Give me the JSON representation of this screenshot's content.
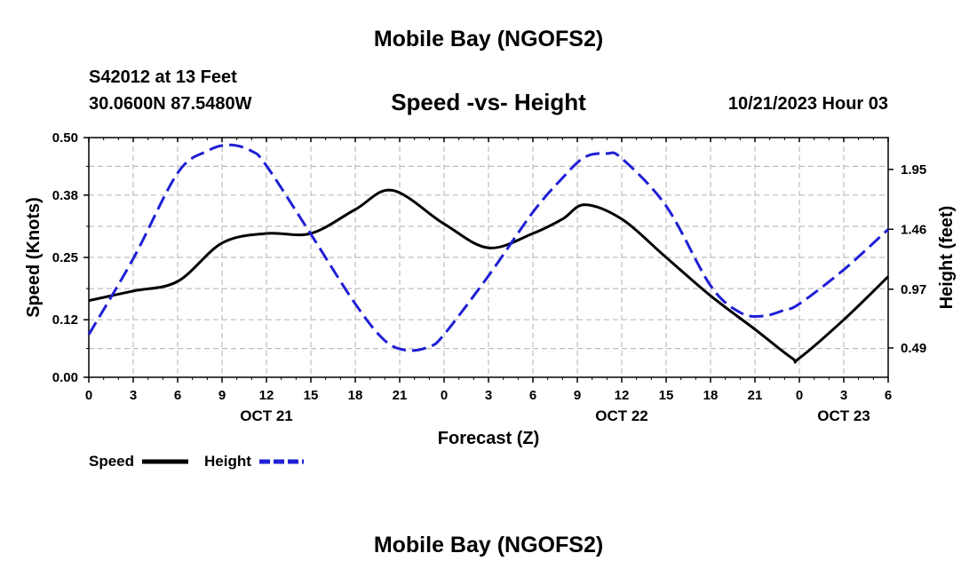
{
  "header": {
    "title": "Mobile Bay (NGOFS2)",
    "station": "S42012 at 13 Feet",
    "coords": "30.0600N  87.5480W",
    "chart_title": "Speed -vs- Height",
    "datetime": "10/21/2023 Hour 03"
  },
  "footer": {
    "title": "Mobile Bay (NGOFS2)"
  },
  "colors": {
    "speed": "#000000",
    "height": "#1f1fd6",
    "grid": "#bdbdbd"
  },
  "chart_data": {
    "type": "line",
    "xlabel": "Forecast (Z)",
    "ylabel": "Speed (Knots)",
    "y2label": "Height (feet)",
    "x_range_hours": [
      0,
      54
    ],
    "x_tick_labels": [
      "0",
      "3",
      "6",
      "9",
      "12",
      "15",
      "18",
      "21",
      "0",
      "3",
      "6",
      "9",
      "12",
      "15",
      "18",
      "21",
      "0",
      "3",
      "6"
    ],
    "date_labels": [
      {
        "label": "OCT 21",
        "hour": 12
      },
      {
        "label": "OCT 22",
        "hour": 36
      },
      {
        "label": "OCT 23",
        "hour": 51
      }
    ],
    "ylim": [
      0,
      0.5
    ],
    "yticks": [
      "0.00",
      "0.12",
      "0.25",
      "0.38",
      "0.50"
    ],
    "y2lim": [
      0.25,
      2.21
    ],
    "y2ticks": [
      "0.49",
      "0.97",
      "1.46",
      "1.95"
    ],
    "grid": true,
    "legend_position": "bottom-left",
    "series": [
      {
        "name": "Speed",
        "axis": "left",
        "style": "solid",
        "x": [
          0,
          3,
          6,
          9,
          12,
          15,
          18,
          20.5,
          24,
          27,
          30,
          32,
          33.5,
          36,
          39,
          42,
          45,
          47.5,
          48,
          51,
          54
        ],
        "y": [
          0.16,
          0.18,
          0.2,
          0.28,
          0.3,
          0.3,
          0.35,
          0.39,
          0.32,
          0.27,
          0.3,
          0.33,
          0.36,
          0.33,
          0.25,
          0.17,
          0.1,
          0.04,
          0.04,
          0.12,
          0.21
        ]
      },
      {
        "name": "Height",
        "axis": "right",
        "style": "dashed",
        "x": [
          0,
          3,
          6,
          8,
          9.5,
          11,
          12,
          15,
          18,
          20,
          21.5,
          23,
          24,
          27,
          30,
          32,
          33.5,
          35,
          36,
          39,
          42,
          44,
          45.5,
          47,
          48,
          51,
          54
        ],
        "y": [
          0.6,
          1.22,
          1.92,
          2.1,
          2.15,
          2.1,
          1.98,
          1.42,
          0.85,
          0.55,
          0.47,
          0.5,
          0.6,
          1.08,
          1.6,
          1.88,
          2.05,
          2.08,
          2.04,
          1.65,
          1.0,
          0.78,
          0.75,
          0.8,
          0.85,
          1.13,
          1.46
        ]
      }
    ]
  }
}
